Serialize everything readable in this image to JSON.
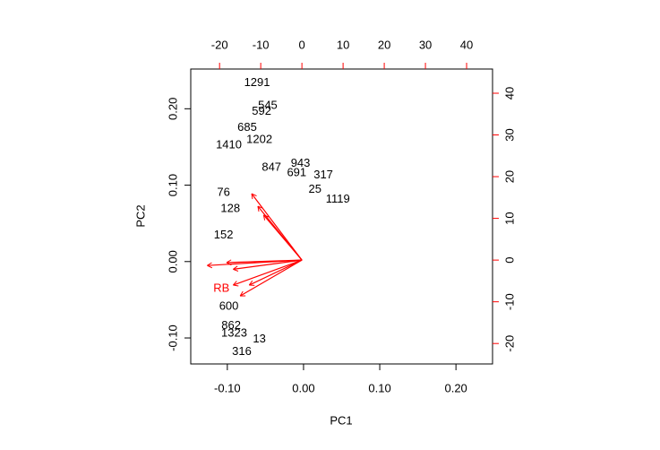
{
  "chart_data": {
    "type": "biplot",
    "xlabel": "PC1",
    "ylabel": "PC2",
    "xlim": [
      -0.148,
      0.248
    ],
    "xticks": [
      {
        "value": -0.1,
        "label": "-0.10"
      },
      {
        "value": 0,
        "label": "0.00"
      },
      {
        "value": 0.1,
        "label": "0.10"
      },
      {
        "value": 0.2,
        "label": "0.20"
      }
    ],
    "ylim": [
      -0.134,
      0.252
    ],
    "yticks": [
      {
        "value": -0.1,
        "label": "-0.10"
      },
      {
        "value": 0,
        "label": "0.00"
      },
      {
        "value": 0.1,
        "label": "0.10"
      },
      {
        "value": 0.2,
        "label": "0.20"
      }
    ],
    "x2lim": [
      -27,
      46.3
    ],
    "x2ticks": [
      -20,
      -10,
      0,
      10,
      20,
      30,
      40
    ],
    "y2lim": [
      -24.9,
      45.8
    ],
    "y2ticks": [
      -20,
      -10,
      0,
      10,
      20,
      30,
      40
    ],
    "points": [
      {
        "label": "1291",
        "x": -0.061,
        "y": 0.234
      },
      {
        "label": "545",
        "x": -0.047,
        "y": 0.204
      },
      {
        "label": "592",
        "x": -0.055,
        "y": 0.196
      },
      {
        "label": "685",
        "x": -0.074,
        "y": 0.175
      },
      {
        "label": "1202",
        "x": -0.058,
        "y": 0.159
      },
      {
        "label": "1410",
        "x": -0.098,
        "y": 0.152
      },
      {
        "label": "847",
        "x": -0.042,
        "y": 0.123
      },
      {
        "label": "943",
        "x": -0.004,
        "y": 0.128
      },
      {
        "label": "691",
        "x": -0.009,
        "y": 0.116
      },
      {
        "label": "317",
        "x": 0.026,
        "y": 0.113
      },
      {
        "label": "25",
        "x": 0.015,
        "y": 0.094
      },
      {
        "label": "1119",
        "x": 0.045,
        "y": 0.081
      },
      {
        "label": "76",
        "x": -0.105,
        "y": 0.09
      },
      {
        "label": "128",
        "x": -0.096,
        "y": 0.069
      },
      {
        "label": "152",
        "x": -0.105,
        "y": 0.034
      },
      {
        "label": "600",
        "x": -0.098,
        "y": -0.059
      },
      {
        "label": "862",
        "x": -0.095,
        "y": -0.084
      },
      {
        "label": "1323",
        "x": -0.091,
        "y": -0.094
      },
      {
        "label": "13",
        "x": -0.058,
        "y": -0.102
      },
      {
        "label": "316",
        "x": -0.081,
        "y": -0.118
      }
    ],
    "arrow_color": "#ff0000",
    "loadings": {
      "names": [
        null,
        null,
        null,
        "RB",
        null,
        null,
        null,
        null,
        null
      ],
      "x": [
        -23,
        -18.3,
        -16.7,
        -16.7,
        -12.2,
        -10.7,
        -9.3,
        -15,
        -12.8
      ],
      "y": [
        -1.3,
        -0.6,
        -2.2,
        -6,
        15.9,
        12.9,
        10.8,
        -8.6,
        -6
      ]
    }
  }
}
